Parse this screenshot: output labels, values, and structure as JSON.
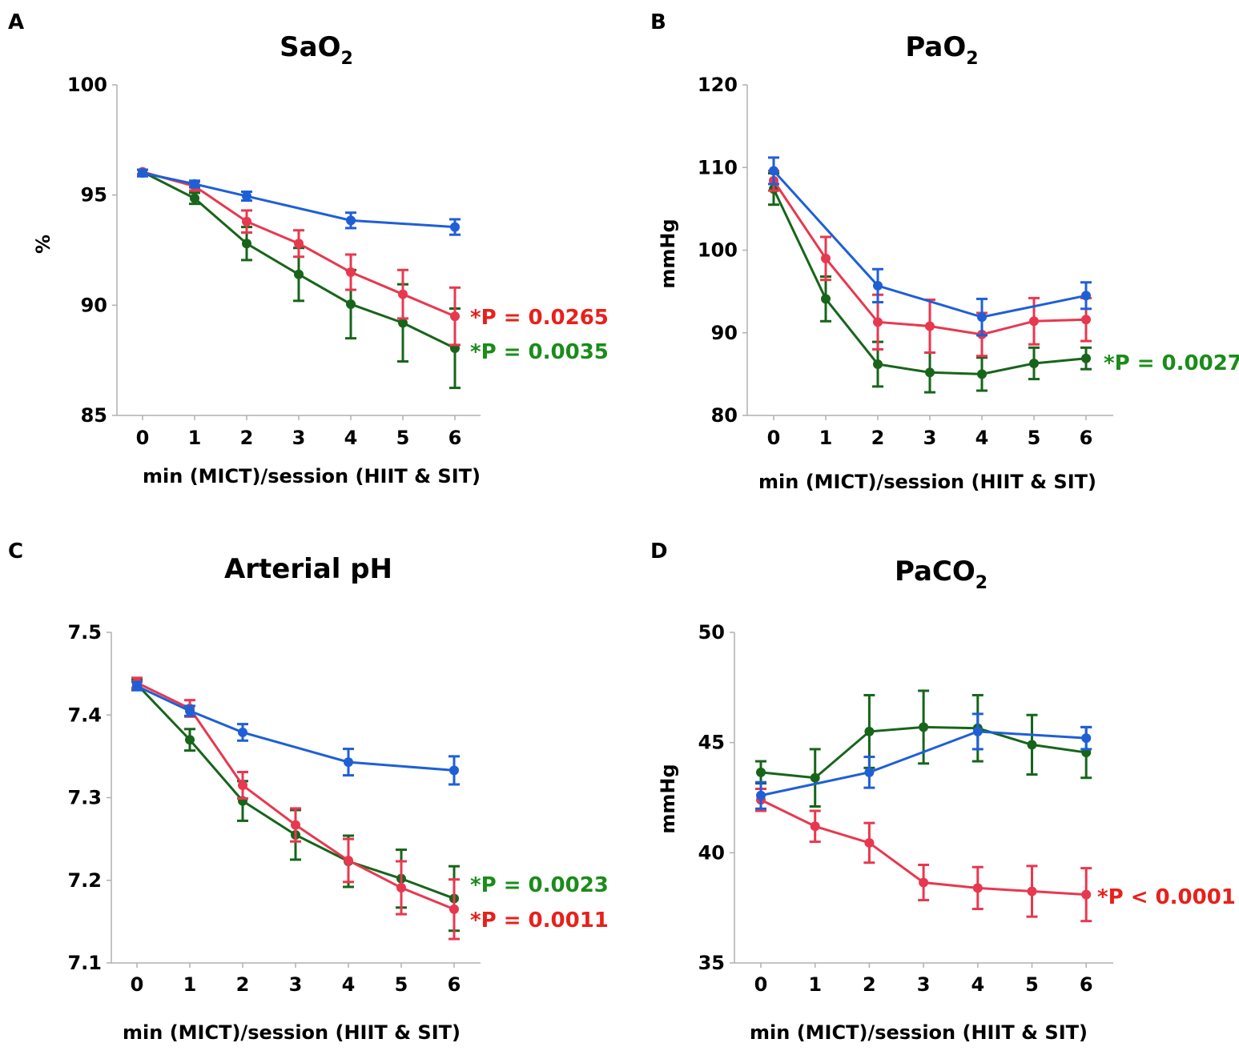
{
  "colors": {
    "MICT": "#1f5fd6",
    "HIIT": "#e8384f",
    "SIT": "#17651a",
    "red_text": "#e8201a",
    "green_text": "#1a8c1a"
  },
  "chart_data": [
    {
      "id": "A",
      "letter": "A",
      "type": "line",
      "title_main": "SaO",
      "title_sub": "2",
      "ylabel": "%",
      "xlabel": "min (MICT)/session (HIIT & SIT)",
      "ylim": [
        85,
        100
      ],
      "yticks": [
        "85",
        "90",
        "95",
        "100"
      ],
      "xticks": [
        "0",
        "1",
        "2",
        "3",
        "4",
        "5",
        "6"
      ],
      "series": [
        {
          "name": "MICT",
          "color": "#1f5fd6",
          "x": [
            0,
            1,
            2,
            4,
            6
          ],
          "y": [
            96.0,
            95.5,
            94.95,
            93.85,
            93.55
          ],
          "err": [
            0.15,
            0.15,
            0.2,
            0.35,
            0.35
          ]
        },
        {
          "name": "HIIT",
          "color": "#e8384f",
          "x": [
            0,
            1,
            2,
            3,
            4,
            5,
            6
          ],
          "y": [
            96.05,
            95.4,
            93.8,
            92.8,
            91.5,
            90.5,
            89.5
          ],
          "err": [
            0.1,
            0.2,
            0.5,
            0.6,
            0.8,
            1.1,
            1.3
          ]
        },
        {
          "name": "SIT",
          "color": "#17651a",
          "x": [
            0,
            1,
            2,
            3,
            4,
            5,
            6
          ],
          "y": [
            96.05,
            94.85,
            92.8,
            91.4,
            90.05,
            89.2,
            88.05
          ],
          "err": [
            0.1,
            0.25,
            0.75,
            1.2,
            1.55,
            1.75,
            1.8
          ]
        }
      ],
      "annotations": [
        {
          "text": "*P = 0.0265",
          "color": "#e8201a"
        },
        {
          "text": "*P = 0.0035",
          "color": "#1a8c1a"
        }
      ]
    },
    {
      "id": "B",
      "letter": "B",
      "type": "line",
      "title_main": "PaO",
      "title_sub": "2",
      "ylabel": "mmHg",
      "xlabel": "min (MICT)/session (HIIT & SIT)",
      "ylim": [
        80,
        120
      ],
      "yticks": [
        "80",
        "90",
        "100",
        "110",
        "120"
      ],
      "xticks": [
        "0",
        "1",
        "2",
        "3",
        "4",
        "5",
        "6"
      ],
      "series": [
        {
          "name": "MICT",
          "color": "#1f5fd6",
          "x": [
            0,
            2,
            4,
            6
          ],
          "y": [
            109.6,
            95.7,
            91.9,
            94.5
          ],
          "err": [
            1.6,
            2.0,
            2.2,
            1.6
          ]
        },
        {
          "name": "HIIT",
          "color": "#e8384f",
          "x": [
            0,
            1,
            2,
            3,
            4,
            5,
            6
          ],
          "y": [
            108.4,
            99.0,
            91.3,
            90.8,
            89.8,
            91.4,
            91.6
          ],
          "err": [
            1.2,
            2.6,
            3.3,
            3.2,
            2.6,
            2.8,
            2.6
          ]
        },
        {
          "name": "SIT",
          "color": "#17651a",
          "x": [
            0,
            1,
            2,
            3,
            4,
            5,
            6
          ],
          "y": [
            107.4,
            94.1,
            86.2,
            85.2,
            85.0,
            86.3,
            86.9
          ],
          "err": [
            1.9,
            2.7,
            2.7,
            2.4,
            2.0,
            1.9,
            1.3
          ]
        }
      ],
      "annotations": [
        {
          "text": "*P = 0.0027",
          "color": "#1a8c1a"
        }
      ]
    },
    {
      "id": "C",
      "letter": "C",
      "type": "line",
      "title_main": "Arterial pH",
      "title_sub": "",
      "ylabel": "",
      "xlabel": "min (MICT)/session (HIIT & SIT)",
      "ylim": [
        7.1,
        7.5
      ],
      "yticks": [
        "7.1",
        "7.2",
        "7.3",
        "7.4",
        "7.5"
      ],
      "xticks": [
        "0",
        "1",
        "2",
        "3",
        "4",
        "5",
        "6"
      ],
      "series": [
        {
          "name": "MICT",
          "color": "#1f5fd6",
          "x": [
            0,
            1,
            2,
            4,
            6
          ],
          "y": [
            7.435,
            7.405,
            7.379,
            7.343,
            7.333
          ],
          "err": [
            0.005,
            0.006,
            0.01,
            0.016,
            0.017
          ]
        },
        {
          "name": "HIIT",
          "color": "#e8384f",
          "x": [
            0,
            1,
            2,
            3,
            4,
            5,
            6
          ],
          "y": [
            7.439,
            7.408,
            7.315,
            7.267,
            7.224,
            7.191,
            7.165
          ],
          "err": [
            0.006,
            0.01,
            0.016,
            0.02,
            0.026,
            0.032,
            0.036
          ]
        },
        {
          "name": "SIT",
          "color": "#17651a",
          "x": [
            0,
            1,
            2,
            3,
            4,
            5,
            6
          ],
          "y": [
            7.437,
            7.37,
            7.296,
            7.255,
            7.223,
            7.202,
            7.178
          ],
          "err": [
            0.006,
            0.013,
            0.024,
            0.03,
            0.031,
            0.035,
            0.039
          ]
        }
      ],
      "annotations": [
        {
          "text": "*P = 0.0023",
          "color": "#1a8c1a"
        },
        {
          "text": "*P = 0.0011",
          "color": "#e8201a"
        }
      ]
    },
    {
      "id": "D",
      "letter": "D",
      "type": "line",
      "title_main": "PaCO",
      "title_sub": "2",
      "ylabel": "mmHg",
      "xlabel": "min (MICT)/session (HIIT & SIT)",
      "ylim": [
        35,
        50
      ],
      "yticks": [
        "35",
        "40",
        "45",
        "50"
      ],
      "xticks": [
        "0",
        "1",
        "2",
        "3",
        "4",
        "5",
        "6"
      ],
      "series": [
        {
          "name": "MICT",
          "color": "#1f5fd6",
          "x": [
            0,
            2,
            4,
            6
          ],
          "y": [
            42.6,
            43.65,
            45.5,
            45.2
          ],
          "err": [
            0.6,
            0.7,
            0.8,
            0.5
          ]
        },
        {
          "name": "HIIT",
          "color": "#e8384f",
          "x": [
            0,
            1,
            2,
            3,
            4,
            5,
            6
          ],
          "y": [
            42.4,
            41.2,
            40.45,
            38.65,
            38.4,
            38.25,
            38.1
          ],
          "err": [
            0.5,
            0.7,
            0.9,
            0.8,
            0.95,
            1.15,
            1.2
          ]
        },
        {
          "name": "SIT",
          "color": "#17651a",
          "x": [
            0,
            1,
            2,
            3,
            4,
            5,
            6
          ],
          "y": [
            43.65,
            43.4,
            45.5,
            45.7,
            45.65,
            44.9,
            44.55
          ],
          "err": [
            0.5,
            1.3,
            1.65,
            1.65,
            1.5,
            1.35,
            1.15
          ]
        }
      ],
      "annotations": [
        {
          "text": "*P < 0.0001",
          "color": "#e8201a"
        }
      ]
    }
  ]
}
